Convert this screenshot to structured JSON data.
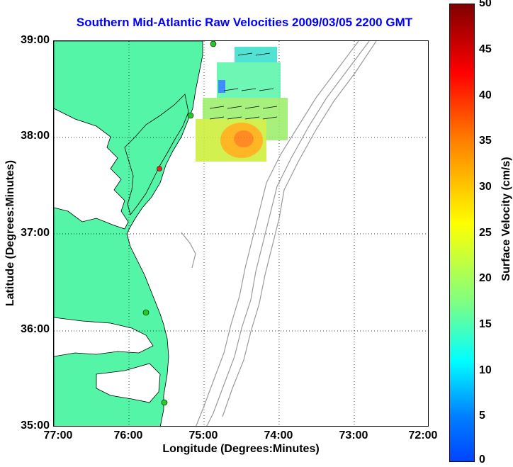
{
  "title": "Southern Mid-Atlantic Raw Velocities 2009/03/05 2200 GMT",
  "axes": {
    "xlabel": "Longitude (Degrees:Minutes)",
    "ylabel": "Latitude (Degrees:Minutes)",
    "x_ticks": [
      "77:00",
      "76:00",
      "75:00",
      "74:00",
      "73:00",
      "72:00"
    ],
    "y_ticks": [
      "39:00",
      "38:00",
      "37:00",
      "36:00",
      "35:00"
    ]
  },
  "colorbar": {
    "label": "Surface Velocity (cm/s)",
    "ticks": [
      "50",
      "45",
      "40",
      "35",
      "30",
      "25",
      "20",
      "15",
      "10",
      "5",
      "0"
    ],
    "range": [
      0,
      50
    ]
  },
  "colors": {
    "title": "#0000ff",
    "land": "#55f5a8",
    "bathymetry": "#9a9a9a",
    "station": "#22cc22"
  }
}
